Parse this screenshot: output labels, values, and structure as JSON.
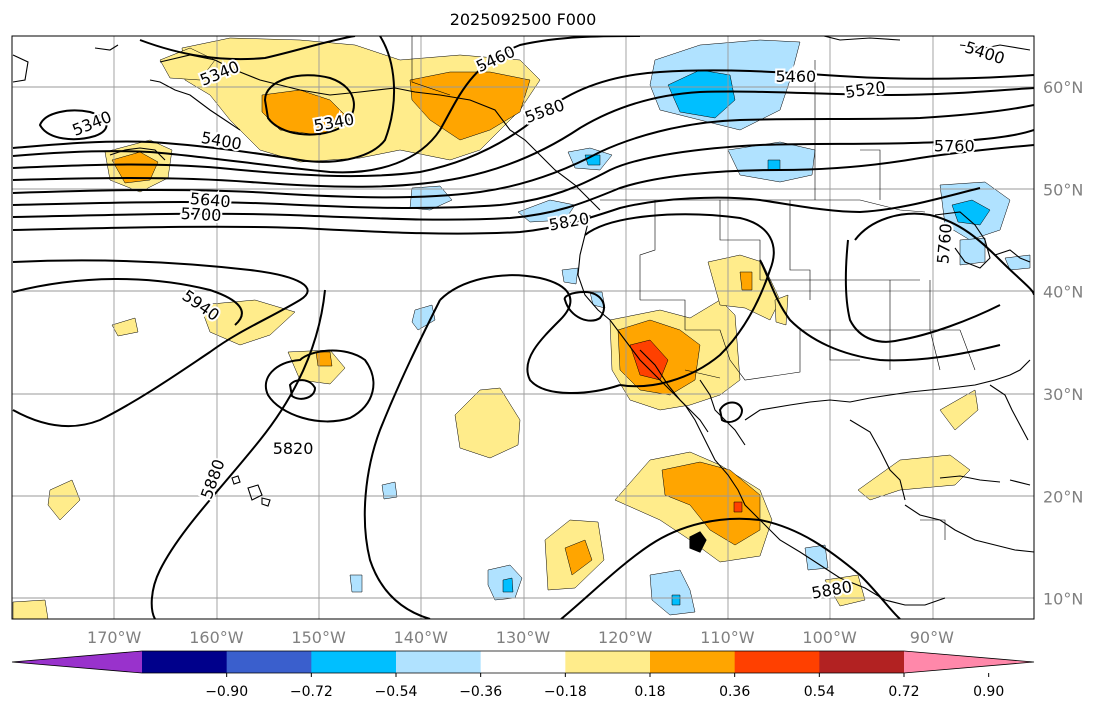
{
  "title": "2025092500 F000",
  "map": {
    "lon_range": [
      -180,
      -80
    ],
    "lat_range": [
      8,
      65
    ],
    "x_tick_labels": [
      {
        "lon": -170,
        "label": "170°W"
      },
      {
        "lon": -160,
        "label": "160°W"
      },
      {
        "lon": -150,
        "label": "150°W"
      },
      {
        "lon": -140,
        "label": "140°W"
      },
      {
        "lon": -130,
        "label": "130°W"
      },
      {
        "lon": -120,
        "label": "120°W"
      },
      {
        "lon": -110,
        "label": "110°W"
      },
      {
        "lon": -100,
        "label": "100°W"
      },
      {
        "lon": -90,
        "label": "90°W"
      }
    ],
    "y_tick_labels": [
      {
        "lat": 60,
        "label": "60°N"
      },
      {
        "lat": 50,
        "label": "50°N"
      },
      {
        "lat": 40,
        "label": "40°N"
      },
      {
        "lat": 30,
        "label": "30°N"
      },
      {
        "lat": 20,
        "label": "20°N"
      },
      {
        "lat": 10,
        "label": "10°N"
      }
    ],
    "grid": true
  },
  "colorbar": {
    "colors": [
      "#9932cc",
      "#00008b",
      "#3a5fcd",
      "#00bfff",
      "#b0e2ff",
      "#ffffff",
      "#ffec8b",
      "#ffa500",
      "#ff4000",
      "#b22222",
      "#ff88aa"
    ],
    "labels": [
      {
        "value": -0.9,
        "label": "−0.90"
      },
      {
        "value": -0.72,
        "label": "−0.72"
      },
      {
        "value": -0.54,
        "label": "−0.54"
      },
      {
        "value": -0.36,
        "label": "−0.36"
      },
      {
        "value": -0.18,
        "label": "−0.18"
      },
      {
        "value": 0.18,
        "label": "0.18"
      },
      {
        "value": 0.36,
        "label": "0.36"
      },
      {
        "value": 0.54,
        "label": "0.54"
      },
      {
        "value": 0.72,
        "label": "0.72"
      },
      {
        "value": 0.9,
        "label": "0.90"
      }
    ],
    "extend": "both"
  },
  "contour_labels": [
    {
      "text": "5340",
      "lon": -159.7,
      "lat": 61.4,
      "angle": -22
    },
    {
      "text": "5340",
      "lon": -172.2,
      "lat": 56.5,
      "angle": -22
    },
    {
      "text": "5340",
      "lon": -148.5,
      "lat": 56.6,
      "angle": -10
    },
    {
      "text": "5400",
      "lon": -159.5,
      "lat": 54.8,
      "angle": 10
    },
    {
      "text": "5460",
      "lon": -132.7,
      "lat": 62.8,
      "angle": -25
    },
    {
      "text": "5580",
      "lon": -127.9,
      "lat": 57.7,
      "angle": -20
    },
    {
      "text": "5460",
      "lon": -103.3,
      "lat": 61.1,
      "angle": 0
    },
    {
      "text": "5520",
      "lon": -96.5,
      "lat": 59.8,
      "angle": -8
    },
    {
      "text": "5400",
      "lon": -84.8,
      "lat": 63.4,
      "angle": 18
    },
    {
      "text": "5760",
      "lon": -87.8,
      "lat": 54.3,
      "angle": 0
    },
    {
      "text": "5640",
      "lon": -160.6,
      "lat": 49.0,
      "angle": 5
    },
    {
      "text": "5700",
      "lon": -161.5,
      "lat": 47.6,
      "angle": 3
    },
    {
      "text": "5820",
      "lon": -125.5,
      "lat": 46.9,
      "angle": -10
    },
    {
      "text": "5940",
      "lon": -161.5,
      "lat": 38.7,
      "angle": 35
    },
    {
      "text": "5820",
      "lon": -152.5,
      "lat": 24.7,
      "angle": 0
    },
    {
      "text": "5880",
      "lon": -160.4,
      "lat": 21.7,
      "angle": -70
    },
    {
      "text": "5880",
      "lon": -99.8,
      "lat": 10.9,
      "angle": -10
    },
    {
      "text": "5760",
      "lon": -88.8,
      "lat": 44.7,
      "angle": -85
    }
  ],
  "anomaly_fill_classes": [
    0.18,
    0.36,
    0.54,
    -0.18,
    -0.36,
    -0.54
  ]
}
